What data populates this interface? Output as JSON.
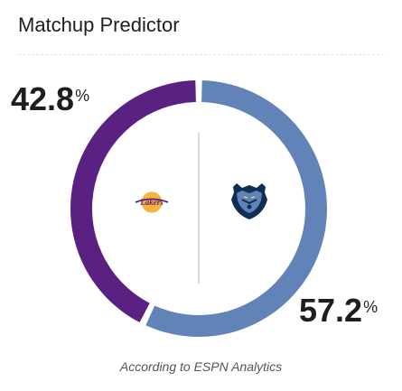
{
  "widget": {
    "title": "Matchup Predictor",
    "footnote": "According to ESPN Analytics"
  },
  "teams": {
    "away": {
      "logo_text": "Lakers",
      "logo_icon": "lakers-logo",
      "win_pct": "42.8",
      "pct_symbol": "%",
      "color": "#5b2182"
    },
    "home": {
      "logo_icon": "grizzlies-logo",
      "win_pct": "57.2",
      "pct_symbol": "%",
      "color": "#6283b8"
    }
  },
  "chart_data": {
    "type": "pie",
    "categories": [
      "Lakers",
      "Grizzlies"
    ],
    "values": [
      42.8,
      57.2
    ],
    "colors": [
      "#5b2182",
      "#6283b8"
    ],
    "title": "Matchup Predictor"
  }
}
